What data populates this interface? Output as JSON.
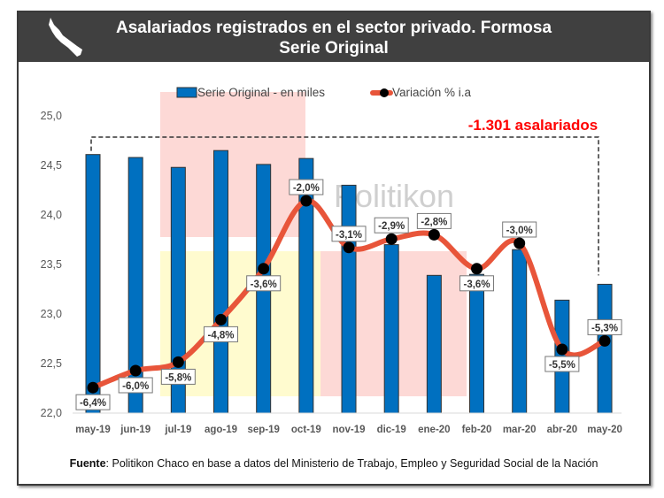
{
  "header": {
    "title_line1": "Asalariados registrados en el sector privado. Formosa",
    "title_line2": "Serie Original",
    "logo_icon": "formosa-map-silhouette"
  },
  "chart_data": {
    "type": "bar+line",
    "categories": [
      "may-19",
      "jun-19",
      "jul-19",
      "ago-19",
      "sep-19",
      "oct-19",
      "nov-19",
      "dic-19",
      "ene-20",
      "feb-20",
      "mar-20",
      "abr-20",
      "may-20"
    ],
    "series": [
      {
        "name": "Serie Original - en miles",
        "type": "bar",
        "axis": "left",
        "color": "#0070C0",
        "values": [
          24.61,
          24.58,
          24.48,
          24.65,
          24.51,
          24.57,
          24.3,
          23.7,
          23.39,
          23.4,
          23.65,
          23.14,
          23.3
        ]
      },
      {
        "name": "Variación % i.a",
        "type": "line",
        "axis": "right",
        "color": "#E8553A",
        "marker_color": "#000000",
        "values": [
          -6.4,
          -6.0,
          -5.8,
          -4.8,
          -3.6,
          -2.0,
          -3.1,
          -2.9,
          -2.8,
          -3.6,
          -3.0,
          -5.5,
          -5.3
        ],
        "labels": [
          "-6,4%",
          "-6,0%",
          "-5,8%",
          "-4,8%",
          "-3,6%",
          "-2,0%",
          "-3,1%",
          "-2,9%",
          "-2,8%",
          "-3,6%",
          "-3,0%",
          "-5,5%",
          "-5,3%"
        ]
      }
    ],
    "ylim": [
      22.0,
      25.0
    ],
    "yticks": [
      "22,0",
      "22,5",
      "23,0",
      "23,5",
      "24,0",
      "24,5",
      "25,0"
    ],
    "y2lim": [
      -7,
      0
    ],
    "y2_visible": false,
    "legend_position": "top",
    "annotation": {
      "text": "-1.301 asalariados",
      "color": "#FF0000",
      "from": "may-19",
      "to": "may-20"
    },
    "watermark": "Politikon",
    "grid": false
  },
  "source": {
    "label": "Fuente",
    "text": ": Politikon Chaco en base a datos del Ministerio  de Trabajo, Empleo y Seguridad  Social de la Nación"
  }
}
